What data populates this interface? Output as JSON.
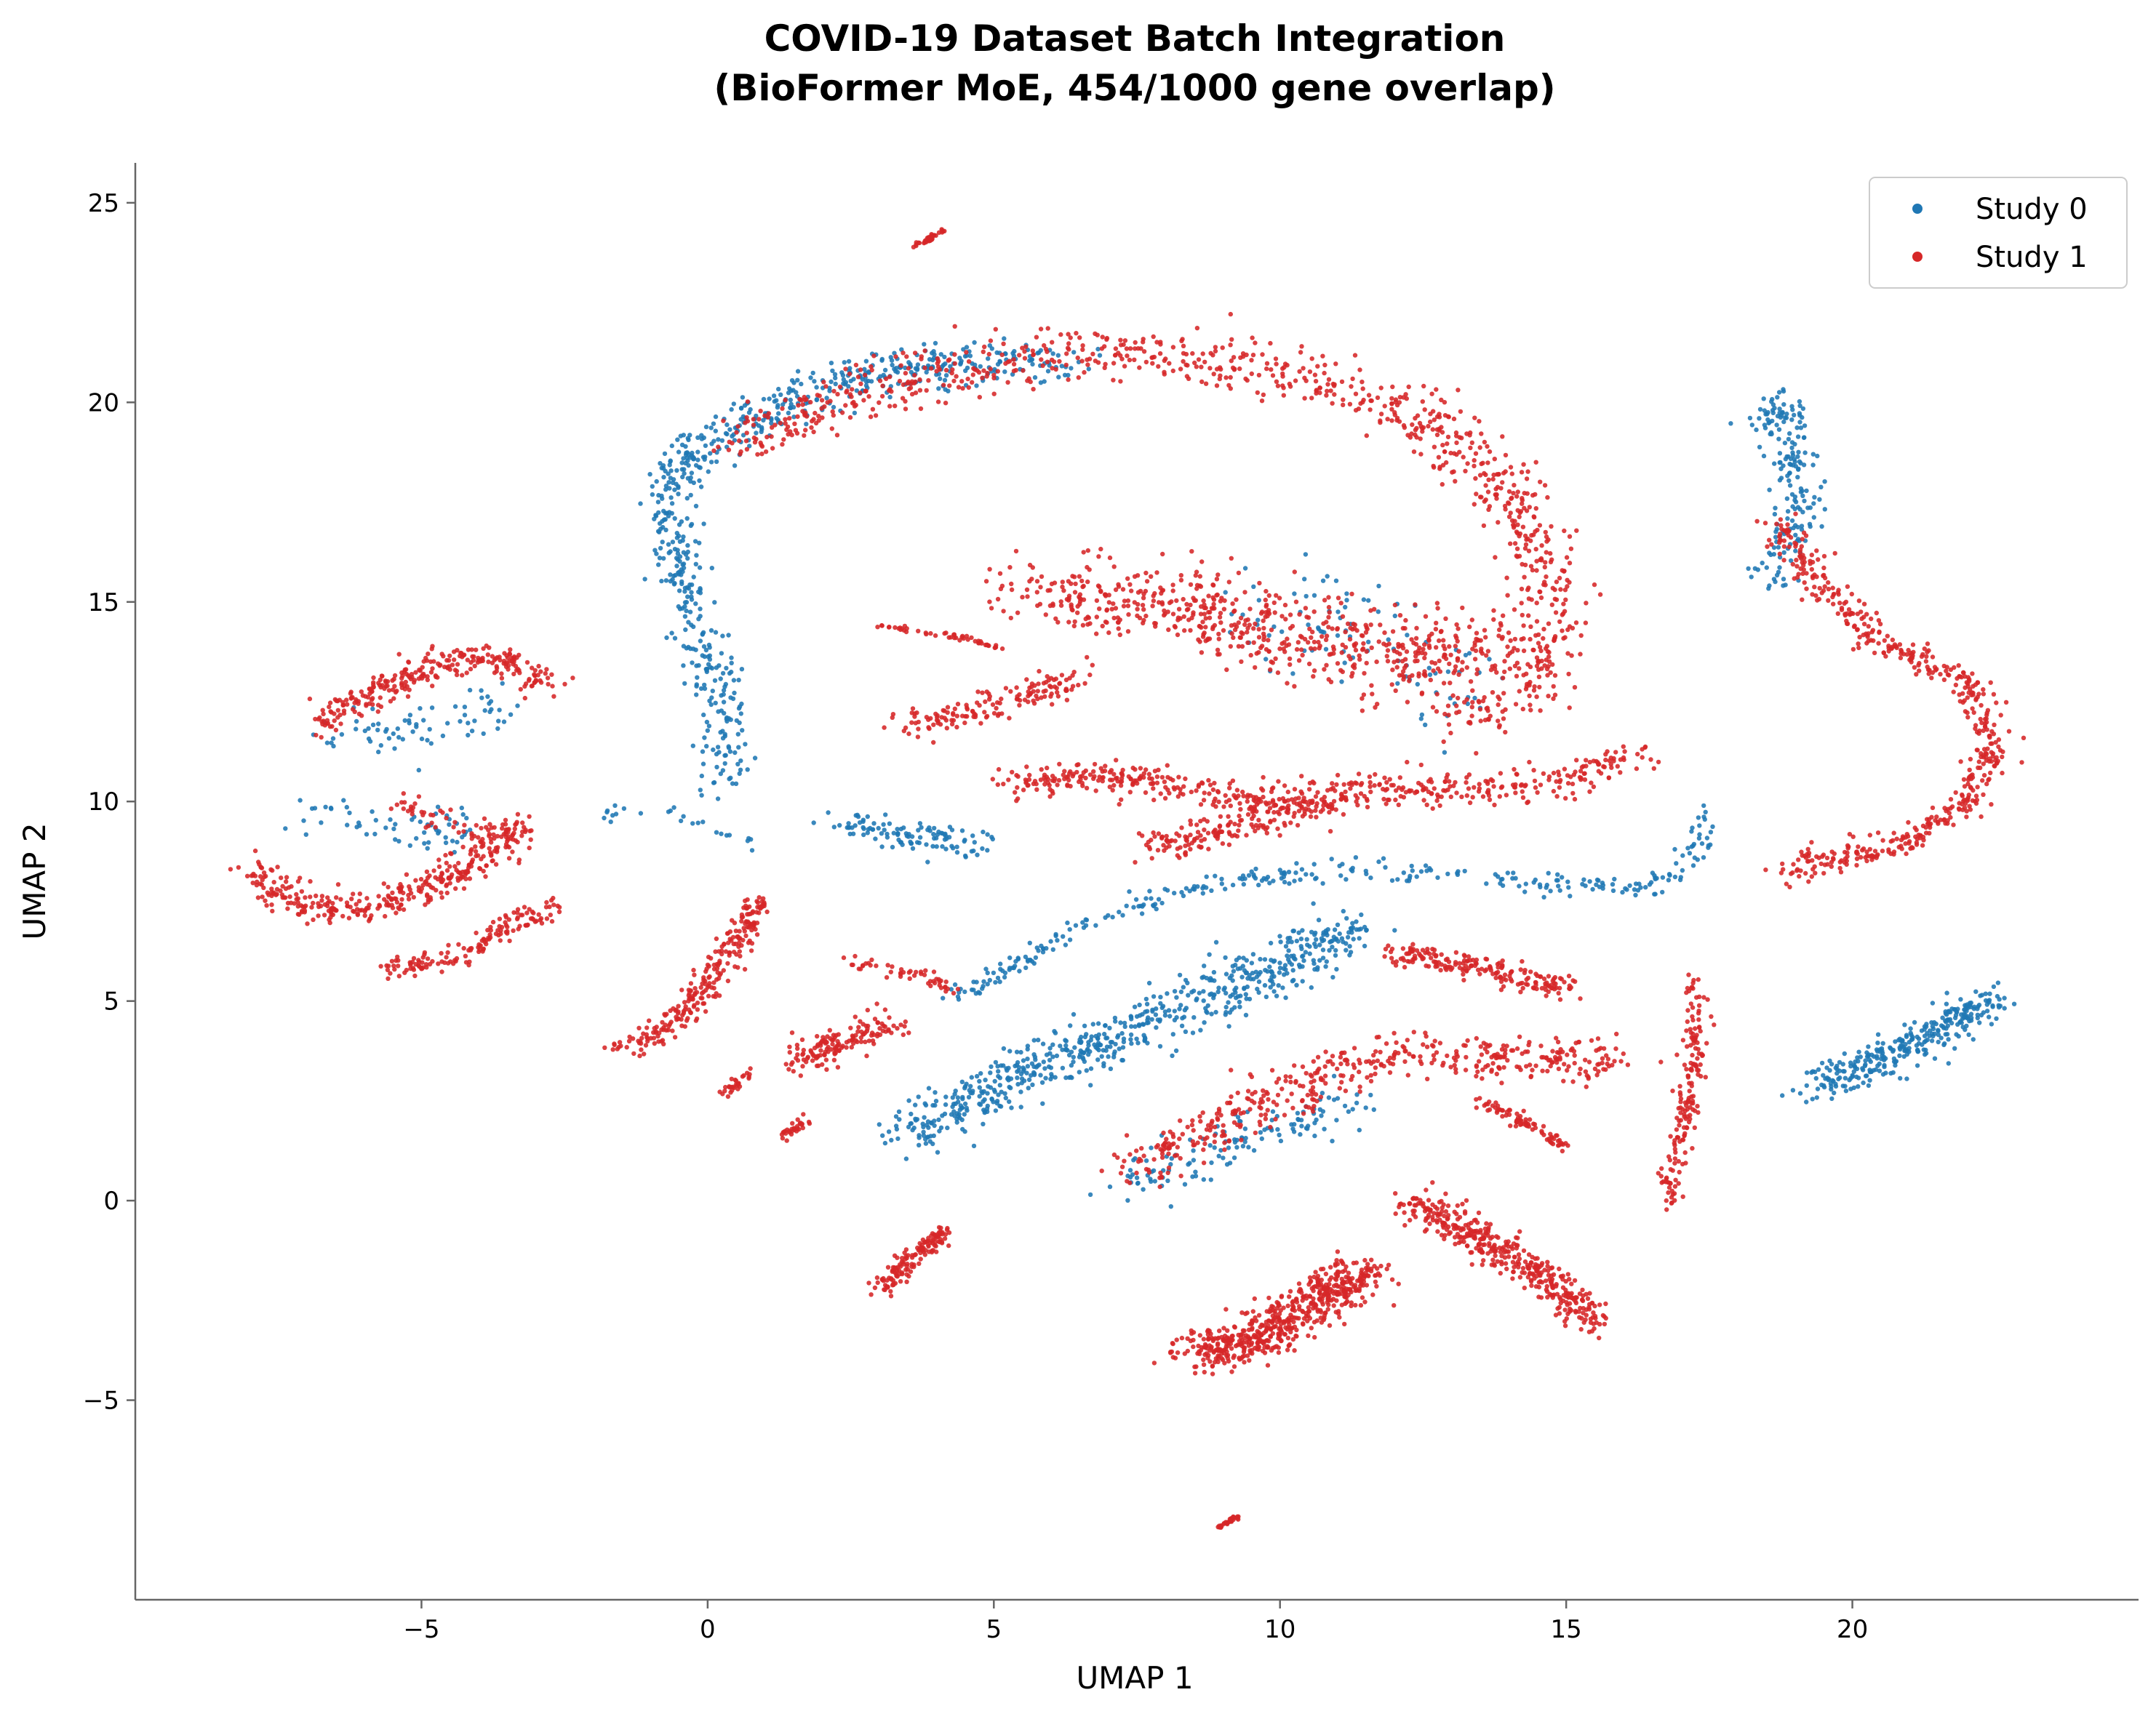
{
  "chart_data": {
    "type": "scatter",
    "title": "COVID-19 Dataset Batch Integration",
    "subtitle": "(BioFormer MoE, 454/1000 gene overlap)",
    "xlabel": "UMAP 1",
    "ylabel": "UMAP 2",
    "xlim": [
      -10,
      25
    ],
    "ylim": [
      -10,
      26
    ],
    "xticks": [
      -5,
      0,
      5,
      10,
      15,
      20
    ],
    "xtick_labels": [
      "−5",
      "0",
      "5",
      "10",
      "15",
      "20"
    ],
    "yticks": [
      -5,
      0,
      5,
      10,
      15,
      20,
      25
    ],
    "ytick_labels": [
      "−5",
      "0",
      "5",
      "10",
      "15",
      "20",
      "25"
    ],
    "grid": false,
    "legend_position": "top-right",
    "series": [
      {
        "name": "Study 0",
        "color": "#1f77b4",
        "clusters": [
          {
            "path": [
              [
                -0.6,
                17.6
              ],
              [
                -0.3,
                18.8
              ],
              [
                0.4,
                19.3
              ],
              [
                1.6,
                20.1
              ],
              [
                3,
                20.8
              ],
              [
                4.5,
                21
              ],
              [
                6.5,
                20.9
              ]
            ],
            "spread": 0.45,
            "n": 420
          },
          {
            "path": [
              [
                -0.6,
                17.5
              ],
              [
                -0.5,
                16
              ],
              [
                -0.2,
                14.5
              ],
              [
                0.2,
                13
              ],
              [
                0.3,
                11.5
              ],
              [
                0.2,
                10.2
              ]
            ],
            "spread": 0.35,
            "n": 260
          },
          {
            "path": [
              [
                3.5,
                1.7
              ],
              [
                5.5,
                3.2
              ],
              [
                7.5,
                4.3
              ],
              [
                9.5,
                5.5
              ],
              [
                11.3,
                6.8
              ]
            ],
            "spread": 0.55,
            "n": 650
          },
          {
            "path": [
              [
                4.2,
                5
              ],
              [
                5.5,
                6
              ],
              [
                7,
                7.2
              ],
              [
                9,
                8
              ],
              [
                11,
                8.3
              ],
              [
                13,
                8.2
              ],
              [
                15,
                7.9
              ],
              [
                16.7,
                7.9
              ],
              [
                17.3,
                8.8
              ],
              [
                17.5,
                9.8
              ]
            ],
            "spread": 0.22,
            "n": 300
          },
          {
            "path": [
              [
                2.3,
                9.5
              ],
              [
                3.5,
                9.1
              ],
              [
                4.8,
                9
              ]
            ],
            "spread": 0.3,
            "n": 110
          },
          {
            "path": [
              [
                19.3,
                2.9
              ],
              [
                20.5,
                3.5
              ],
              [
                21.5,
                4.3
              ],
              [
                22.4,
                5
              ]
            ],
            "spread": 0.4,
            "n": 320
          },
          {
            "path": [
              [
                18.2,
                19.2
              ],
              [
                18.8,
                19.9
              ],
              [
                19.1,
                17.5
              ],
              [
                18.6,
                15.5
              ]
            ],
            "spread": 0.35,
            "n": 190
          },
          {
            "path": [
              [
                7,
                0.3
              ],
              [
                8.5,
                1
              ],
              [
                10,
                1.8
              ],
              [
                11.5,
                2.6
              ]
            ],
            "spread": 0.5,
            "n": 130
          },
          {
            "path": [
              [
                -6.5,
                11.5
              ],
              [
                -4.8,
                11.8
              ],
              [
                -3.6,
                12.5
              ]
            ],
            "spread": 0.45,
            "n": 70
          },
          {
            "path": [
              [
                -7,
                9.8
              ],
              [
                -5.5,
                9.3
              ],
              [
                -4,
                9.3
              ]
            ],
            "spread": 0.45,
            "n": 60
          },
          {
            "path": [
              [
                9.5,
                15
              ],
              [
                11.5,
                14.5
              ],
              [
                13,
                12.5
              ]
            ],
            "spread": 0.9,
            "n": 90
          },
          {
            "path": [
              [
                -2,
                9.6
              ],
              [
                -1,
                9.9
              ],
              [
                0.8,
                9
              ]
            ],
            "spread": 0.15,
            "n": 25
          }
        ]
      },
      {
        "name": "Study 1",
        "color": "#d62728",
        "clusters": [
          {
            "path": [
              [
                0.5,
                19
              ],
              [
                2.5,
                20.3
              ],
              [
                5,
                21
              ],
              [
                7.5,
                21.2
              ],
              [
                10,
                20.8
              ],
              [
                12.5,
                19.7
              ],
              [
                14.2,
                17.5
              ],
              [
                14.8,
                15
              ],
              [
                14.5,
                13
              ],
              [
                13,
                12
              ]
            ],
            "spread": 0.55,
            "n": 900
          },
          {
            "path": [
              [
                5.5,
                15.2
              ],
              [
                8,
                15
              ],
              [
                10,
                14.2
              ],
              [
                12,
                13.5
              ],
              [
                14,
                14
              ]
            ],
            "spread": 0.9,
            "n": 650
          },
          {
            "path": [
              [
                3.5,
                11.8
              ],
              [
                5,
                12.5
              ],
              [
                6.5,
                13
              ]
            ],
            "spread": 0.35,
            "n": 150
          },
          {
            "path": [
              [
                5.2,
                10.5
              ],
              [
                7.5,
                10.6
              ],
              [
                9.5,
                10
              ],
              [
                11,
                10.2
              ],
              [
                13,
                10.3
              ],
              [
                15,
                10.5
              ],
              [
                16.3,
                11.3
              ]
            ],
            "spread": 0.35,
            "n": 500
          },
          {
            "path": [
              [
                7.5,
                8.8
              ],
              [
                9.5,
                9.5
              ],
              [
                11,
                10
              ]
            ],
            "spread": 0.35,
            "n": 180
          },
          {
            "path": [
              [
                8.5,
                -3.8
              ],
              [
                9.5,
                -3.5
              ],
              [
                10.5,
                -2.7
              ],
              [
                11.5,
                -1.7
              ]
            ],
            "spread": 0.45,
            "n": 600
          },
          {
            "path": [
              [
                12.3,
                0
              ],
              [
                13.5,
                -1
              ],
              [
                14.5,
                -1.8
              ],
              [
                15.5,
                -3
              ]
            ],
            "spread": 0.35,
            "n": 420
          },
          {
            "path": [
              [
                7.3,
                0.8
              ],
              [
                8.5,
                1.5
              ],
              [
                9.5,
                2.3
              ],
              [
                10.8,
                3.1
              ],
              [
                12,
                3.7
              ],
              [
                14.5,
                3.5
              ],
              [
                16,
                3.6
              ]
            ],
            "spread": 0.45,
            "n": 450
          },
          {
            "path": [
              [
                -1.5,
                3.8
              ],
              [
                -0.5,
                4.5
              ],
              [
                0,
                5.5
              ],
              [
                0.5,
                6.5
              ],
              [
                1,
                7.5
              ]
            ],
            "spread": 0.25,
            "n": 260
          },
          {
            "path": [
              [
                1.5,
                3.5
              ],
              [
                2.5,
                4
              ],
              [
                3.2,
                4.5
              ]
            ],
            "spread": 0.3,
            "n": 150
          },
          {
            "path": [
              [
                3,
                -2.2
              ],
              [
                3.5,
                -1.5
              ],
              [
                4.2,
                -0.7
              ]
            ],
            "spread": 0.2,
            "n": 140
          },
          {
            "path": [
              [
                18.7,
                17
              ],
              [
                19.4,
                15.5
              ],
              [
                20.5,
                14
              ],
              [
                22,
                13
              ],
              [
                22.5,
                11.5
              ],
              [
                22,
                10
              ],
              [
                21,
                9
              ],
              [
                19.5,
                8.5
              ],
              [
                18.8,
                8.3
              ]
            ],
            "spread": 0.3,
            "n": 550
          },
          {
            "path": [
              [
                16.7,
                0
              ],
              [
                17,
                1.5
              ],
              [
                17.2,
                3.5
              ],
              [
                17.3,
                5.6
              ]
            ],
            "spread": 0.18,
            "n": 180
          },
          {
            "path": [
              [
                12,
                6.2
              ],
              [
                13.5,
                5.8
              ],
              [
                15,
                5.3
              ]
            ],
            "spread": 0.25,
            "n": 200
          },
          {
            "path": [
              [
                13.5,
                2.5
              ],
              [
                14.5,
                1.8
              ],
              [
                15,
                1.3
              ]
            ],
            "spread": 0.12,
            "n": 80
          },
          {
            "path": [
              [
                -8,
                8.3
              ],
              [
                -7,
                7.3
              ],
              [
                -5.5,
                7.5
              ],
              [
                -4,
                8.5
              ],
              [
                -3.2,
                9.5
              ]
            ],
            "spread": 0.35,
            "n": 350
          },
          {
            "path": [
              [
                -5.5,
                5.8
              ],
              [
                -4.5,
                6
              ],
              [
                -3.5,
                6.8
              ],
              [
                -2.7,
                7.4
              ]
            ],
            "spread": 0.25,
            "n": 150
          },
          {
            "path": [
              [
                -6.8,
                12
              ],
              [
                -5.8,
                12.8
              ],
              [
                -4.5,
                13.5
              ],
              [
                -3.5,
                13.6
              ],
              [
                -2.7,
                12.8
              ]
            ],
            "spread": 0.3,
            "n": 280
          },
          {
            "path": [
              [
                -5.5,
                10
              ],
              [
                -4,
                9.3
              ],
              [
                -3,
                9
              ]
            ],
            "spread": 0.25,
            "n": 60
          },
          {
            "path": [
              [
                3,
                14.4
              ],
              [
                4.5,
                14.1
              ],
              [
                5.2,
                13.8
              ]
            ],
            "spread": 0.06,
            "n": 50
          },
          {
            "path": [
              [
                2.5,
                6
              ],
              [
                3.5,
                5.7
              ],
              [
                4.3,
                5.3
              ]
            ],
            "spread": 0.15,
            "n": 50
          },
          {
            "path": [
              [
                1.3,
                1.6
              ],
              [
                1.7,
                2
              ]
            ],
            "spread": 0.1,
            "n": 30
          },
          {
            "path": [
              [
                0.3,
                2.7
              ],
              [
                0.7,
                3.2
              ]
            ],
            "spread": 0.1,
            "n": 30
          },
          {
            "path": [
              [
                3.6,
                23.9
              ],
              [
                4.1,
                24.3
              ]
            ],
            "spread": 0.05,
            "n": 35
          },
          {
            "path": [
              [
                8.9,
                -8.2
              ],
              [
                9.3,
                -7.9
              ]
            ],
            "spread": 0.04,
            "n": 30
          }
        ]
      }
    ]
  }
}
